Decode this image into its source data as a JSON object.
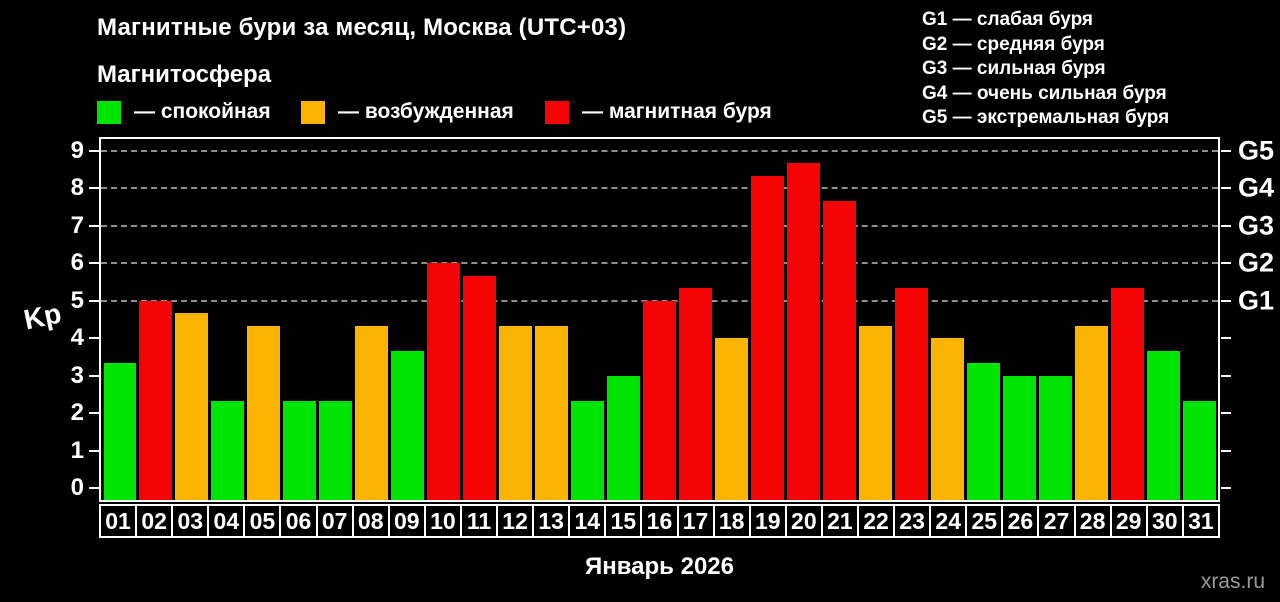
{
  "page": {
    "title": "Магнитные бури за месяц, Москва (UTC+03)",
    "subtitle": "Магнитосфера",
    "watermark": "xras.ru"
  },
  "colors": {
    "background": "#000000",
    "frame": "#ffffff",
    "grid": "#8f8f8f",
    "text": "#ffffff",
    "watermark": "#9b9b9b",
    "quiet": "#00e404",
    "excited": "#fcb404",
    "storm": "#f40404"
  },
  "legend": {
    "items": [
      {
        "level": "quiet",
        "label": "— спокойная"
      },
      {
        "level": "excited",
        "label": "— возбужденная"
      },
      {
        "level": "storm",
        "label": "— магнитная буря"
      }
    ]
  },
  "storm_scale": [
    "G1 — слабая буря",
    "G2 — средняя буря",
    "G3 — сильная буря",
    "G4 — очень сильная буря",
    "G5 — экстремальная буря"
  ],
  "chart_data": {
    "type": "bar",
    "title": "Магнитные бури за месяц, Москва (UTC+03)",
    "ylabel": "Kp",
    "month_label": "Январь 2026",
    "ylim": [
      0,
      9
    ],
    "y_ticks": [
      0,
      1,
      2,
      3,
      4,
      5,
      6,
      7,
      8,
      9
    ],
    "gridlines_at_kp": [
      5,
      6,
      7,
      8,
      9
    ],
    "grid": "dashed",
    "legend_position": "top",
    "right_axis": [
      {
        "label": "G1",
        "kp": 5
      },
      {
        "label": "G2",
        "kp": 6
      },
      {
        "label": "G3",
        "kp": 7
      },
      {
        "label": "G4",
        "kp": 8
      },
      {
        "label": "G5",
        "kp": 9
      }
    ],
    "categories": [
      "01",
      "02",
      "03",
      "04",
      "05",
      "06",
      "07",
      "08",
      "09",
      "10",
      "11",
      "12",
      "13",
      "14",
      "15",
      "16",
      "17",
      "18",
      "19",
      "20",
      "21",
      "22",
      "23",
      "24",
      "25",
      "26",
      "27",
      "28",
      "29",
      "30",
      "31"
    ],
    "series": [
      {
        "name": "Kp index",
        "values": [
          3.33,
          5,
          4.67,
          2.33,
          4.33,
          2.33,
          2.33,
          4.33,
          3.67,
          6,
          5.67,
          4.33,
          4.33,
          2.33,
          3,
          5,
          5.33,
          4,
          8.33,
          8.67,
          7.67,
          4.33,
          5.33,
          4,
          3.33,
          3,
          3,
          4.33,
          5.33,
          3.67,
          2.33
        ]
      }
    ],
    "levels": [
      "quiet",
      "storm",
      "excited",
      "quiet",
      "excited",
      "quiet",
      "quiet",
      "excited",
      "quiet",
      "storm",
      "storm",
      "excited",
      "excited",
      "quiet",
      "quiet",
      "storm",
      "storm",
      "excited",
      "storm",
      "storm",
      "storm",
      "excited",
      "storm",
      "excited",
      "quiet",
      "quiet",
      "quiet",
      "excited",
      "storm",
      "quiet",
      "quiet"
    ]
  }
}
